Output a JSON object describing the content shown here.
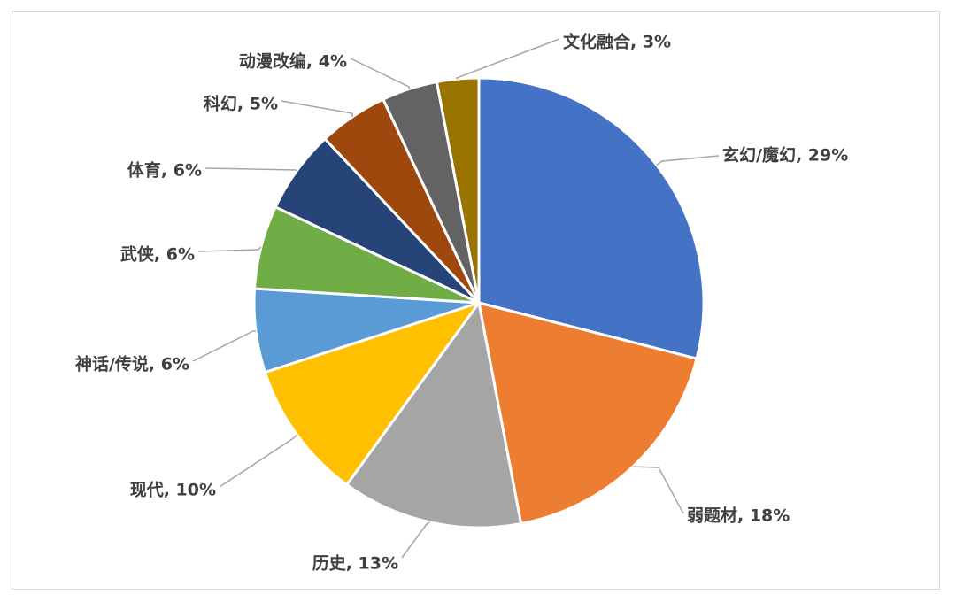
{
  "chart_data": {
    "type": "pie",
    "title": "",
    "start_angle_deg": 0,
    "direction": "clockwise",
    "legend": "none",
    "slices": [
      {
        "label": "玄幻/魔幻",
        "value": 29,
        "display": "玄幻/魔幻, 29%",
        "color": "#4472C4"
      },
      {
        "label": "弱题材",
        "value": 18,
        "display": "弱题材, 18%",
        "color": "#ED7D31"
      },
      {
        "label": "历史",
        "value": 13,
        "display": "历史, 13%",
        "color": "#A5A5A5"
      },
      {
        "label": "现代",
        "value": 10,
        "display": "现代, 10%",
        "color": "#FFC000"
      },
      {
        "label": "神话/传说",
        "value": 6,
        "display": "神话/传说, 6%",
        "color": "#5B9BD5"
      },
      {
        "label": "武侠",
        "value": 6,
        "display": "武侠, 6%",
        "color": "#70AD47"
      },
      {
        "label": "体育",
        "value": 6,
        "display": "体育, 6%",
        "color": "#264478"
      },
      {
        "label": "科幻",
        "value": 5,
        "display": "科幻, 5%",
        "color": "#9E480E"
      },
      {
        "label": "动漫改编",
        "value": 4,
        "display": "动漫改编, 4%",
        "color": "#636363"
      },
      {
        "label": "文化融合",
        "value": 3,
        "display": "文化融合, 3%",
        "color": "#997300"
      }
    ]
  }
}
